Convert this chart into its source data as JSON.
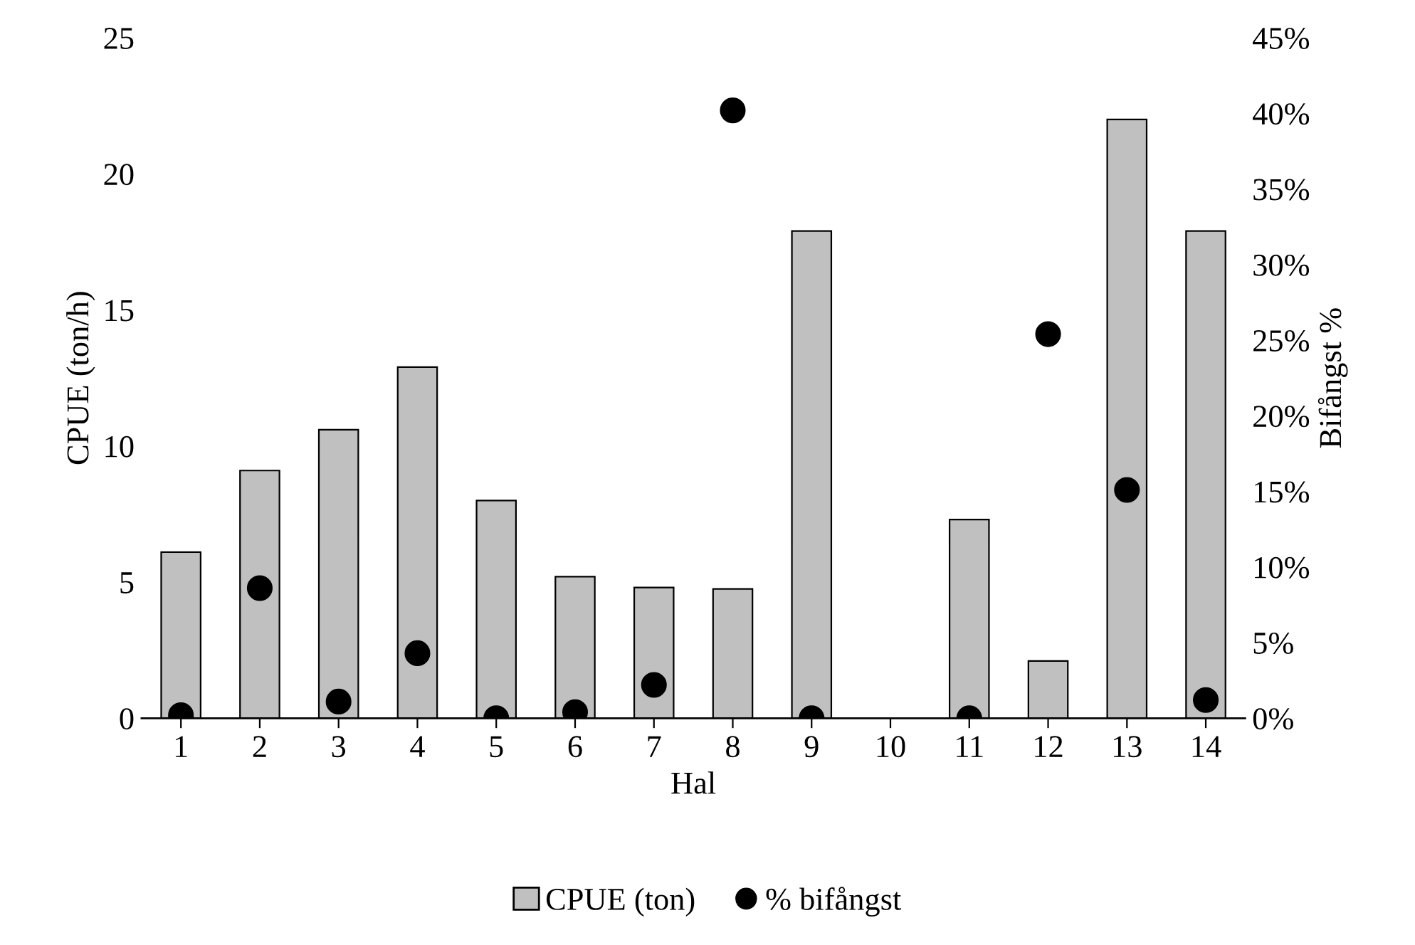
{
  "chart_data": {
    "type": "bar",
    "xlabel": "Hal",
    "ylabel": "CPUE (ton/h)",
    "y2label": "Bifångst %",
    "categories": [
      "1",
      "2",
      "3",
      "4",
      "5",
      "6",
      "7",
      "8",
      "9",
      "10",
      "11",
      "12",
      "13",
      "14"
    ],
    "series": [
      {
        "name": "CPUE (ton)",
        "color": "#c0c0c0",
        "values": [
          6.1,
          9.1,
          10.6,
          12.9,
          8.0,
          5.2,
          4.8,
          4.75,
          17.9,
          null,
          7.3,
          2.1,
          22.0,
          17.9
        ]
      },
      {
        "name": "% bifångst",
        "type": "scatter",
        "axis": "y2",
        "color": "#000000",
        "marker": "circle",
        "values": [
          0.2,
          8.6,
          1.1,
          4.3,
          0,
          0.4,
          2.2,
          40.2,
          0,
          null,
          0,
          25.4,
          15.1,
          1.2
        ]
      }
    ],
    "ylim": [
      0,
      25
    ],
    "yticks": [
      0,
      5,
      10,
      15,
      20,
      25
    ],
    "y2lim": [
      0,
      45
    ],
    "y2ticks": [
      {
        "value": 0,
        "label": "0%"
      },
      {
        "value": 5,
        "label": "5%"
      },
      {
        "value": 10,
        "label": "10%"
      },
      {
        "value": 15,
        "label": "15%"
      },
      {
        "value": 20,
        "label": "20%"
      },
      {
        "value": 25,
        "label": "25%"
      },
      {
        "value": 30,
        "label": "30%"
      },
      {
        "value": 35,
        "label": "35%"
      },
      {
        "value": 40,
        "label": "40%"
      },
      {
        "value": 45,
        "label": "45%"
      }
    ],
    "grid": false,
    "legend": "bottom"
  }
}
